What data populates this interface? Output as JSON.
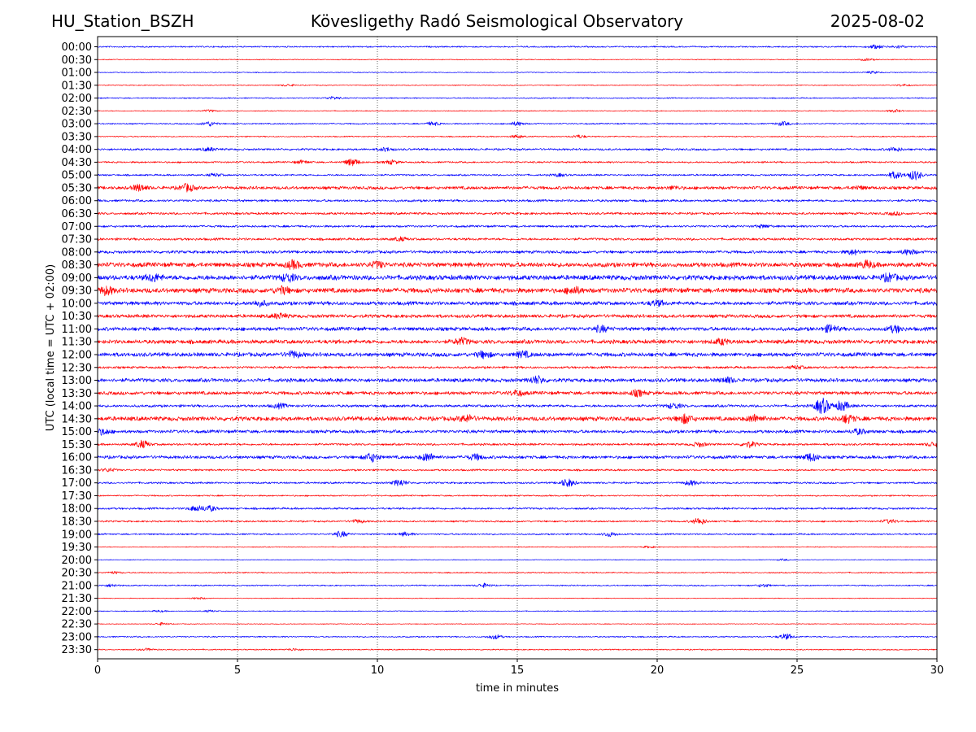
{
  "header": {
    "station": "HU_Station_BSZH",
    "observatory": "Kövesligethy Radó Seismological Observatory",
    "date": "2025-08-02"
  },
  "chart_data": {
    "type": "line",
    "title": "Kövesligethy Radó Seismological Observatory",
    "xlabel": "time in minutes",
    "ylabel": "UTC (local time = UTC + 02:00)",
    "xlim": [
      0,
      30
    ],
    "xticks": [
      0,
      5,
      10,
      15,
      20,
      25,
      30
    ],
    "grid_x": true,
    "colors": {
      "even": "#0000ff",
      "odd": "#ff0000"
    },
    "rows": [
      {
        "label": "00:00",
        "amp": 1,
        "bursts": [
          [
            27.8,
            2
          ],
          [
            28.6,
            1.5
          ]
        ]
      },
      {
        "label": "00:30",
        "amp": 0.6,
        "bursts": [
          [
            27.5,
            1.2
          ]
        ]
      },
      {
        "label": "01:00",
        "amp": 0.6,
        "bursts": [
          [
            27.7,
            1.3
          ]
        ]
      },
      {
        "label": "01:30",
        "amp": 0.6,
        "bursts": [
          [
            6.8,
            1.2
          ],
          [
            28.8,
            1.2
          ]
        ]
      },
      {
        "label": "02:00",
        "amp": 0.8,
        "bursts": [
          [
            8.4,
            1.6
          ]
        ]
      },
      {
        "label": "02:30",
        "amp": 0.6,
        "bursts": [
          [
            4,
            1.2
          ],
          [
            28.5,
            1.5
          ]
        ]
      },
      {
        "label": "03:00",
        "amp": 0.9,
        "bursts": [
          [
            4,
            2.6
          ],
          [
            12,
            2
          ],
          [
            15,
            2.2
          ],
          [
            24.5,
            2.2
          ]
        ]
      },
      {
        "label": "03:30",
        "amp": 0.8,
        "bursts": [
          [
            15,
            1.6
          ],
          [
            17.2,
            1.8
          ]
        ]
      },
      {
        "label": "04:00",
        "amp": 1.4,
        "bursts": [
          [
            4,
            1.8
          ],
          [
            10.3,
            2
          ],
          [
            28.5,
            2
          ]
        ]
      },
      {
        "label": "04:30",
        "amp": 1.2,
        "bursts": [
          [
            7.3,
            1.8
          ],
          [
            9.1,
            4
          ],
          [
            10.5,
            2.2
          ]
        ]
      },
      {
        "label": "05:00",
        "amp": 1.2,
        "bursts": [
          [
            4.2,
            1.5
          ],
          [
            16.5,
            1.5
          ],
          [
            28.5,
            4
          ],
          [
            29.2,
            5.5
          ]
        ]
      },
      {
        "label": "05:30",
        "amp": 2.2,
        "bursts": [
          [
            1.5,
            3.5
          ],
          [
            3.2,
            4
          ],
          [
            20.6,
            1.6
          ],
          [
            27.2,
            1.6
          ]
        ]
      },
      {
        "label": "06:00",
        "amp": 1.6,
        "bursts": []
      },
      {
        "label": "06:30",
        "amp": 1.6,
        "bursts": [
          [
            28.5,
            1.5
          ]
        ]
      },
      {
        "label": "07:00",
        "amp": 1.5,
        "bursts": [
          [
            23.8,
            1.6
          ]
        ]
      },
      {
        "label": "07:30",
        "amp": 1.7,
        "bursts": [
          [
            10.8,
            2
          ]
        ]
      },
      {
        "label": "08:00",
        "amp": 2,
        "bursts": [
          [
            27,
            2.5
          ],
          [
            29,
            2.8
          ]
        ]
      },
      {
        "label": "08:30",
        "amp": 3.2,
        "bursts": [
          [
            7,
            4
          ],
          [
            10,
            3
          ],
          [
            27.5,
            3.5
          ]
        ]
      },
      {
        "label": "09:00",
        "amp": 3.4,
        "bursts": [
          [
            2,
            3.6
          ],
          [
            6.8,
            4
          ],
          [
            28.3,
            3.8
          ]
        ]
      },
      {
        "label": "09:30",
        "amp": 3.4,
        "bursts": [
          [
            0.3,
            4
          ],
          [
            6.6,
            3.6
          ],
          [
            17,
            3.6
          ]
        ]
      },
      {
        "label": "10:00",
        "amp": 2.6,
        "bursts": [
          [
            5.8,
            3
          ],
          [
            20,
            2.8
          ]
        ]
      },
      {
        "label": "10:30",
        "amp": 2.4,
        "bursts": [
          [
            6.5,
            2.6
          ]
        ]
      },
      {
        "label": "11:00",
        "amp": 2.6,
        "bursts": [
          [
            18,
            3.2
          ],
          [
            26.2,
            4
          ],
          [
            28.5,
            3.5
          ]
        ]
      },
      {
        "label": "11:30",
        "amp": 2.8,
        "bursts": [
          [
            13,
            3.6
          ],
          [
            22.3,
            2.8
          ]
        ]
      },
      {
        "label": "12:00",
        "amp": 2.8,
        "bursts": [
          [
            7,
            3.2
          ],
          [
            13.8,
            3.4
          ],
          [
            15.2,
            3
          ]
        ]
      },
      {
        "label": "12:30",
        "amp": 1.6,
        "bursts": [
          [
            25,
            1.8
          ]
        ]
      },
      {
        "label": "13:00",
        "amp": 2.6,
        "bursts": [
          [
            15.7,
            4
          ],
          [
            22.5,
            2.8
          ]
        ]
      },
      {
        "label": "13:30",
        "amp": 2.4,
        "bursts": [
          [
            15,
            2.8
          ],
          [
            19.3,
            3.2
          ]
        ]
      },
      {
        "label": "14:00",
        "amp": 1.8,
        "bursts": [
          [
            6.5,
            2.4
          ],
          [
            20.6,
            3
          ],
          [
            25.9,
            9
          ],
          [
            26.6,
            5.5
          ]
        ]
      },
      {
        "label": "14:30",
        "amp": 3,
        "bursts": [
          [
            13.2,
            3.6
          ],
          [
            21,
            4.5
          ],
          [
            23.5,
            4
          ],
          [
            26.8,
            4
          ]
        ]
      },
      {
        "label": "15:00",
        "amp": 2.2,
        "bursts": [
          [
            0.2,
            3
          ],
          [
            27.2,
            2.8
          ]
        ]
      },
      {
        "label": "15:30",
        "amp": 1.5,
        "bursts": [
          [
            1.6,
            4.2
          ],
          [
            21.5,
            2.4
          ],
          [
            23.3,
            3.2
          ],
          [
            29.9,
            2.8
          ]
        ]
      },
      {
        "label": "16:00",
        "amp": 2.2,
        "bursts": [
          [
            9.8,
            4.6
          ],
          [
            11.8,
            4.2
          ],
          [
            13.5,
            3
          ],
          [
            25.5,
            4.2
          ]
        ]
      },
      {
        "label": "16:30",
        "amp": 1.3,
        "bursts": [
          [
            0.4,
            1.8
          ]
        ]
      },
      {
        "label": "17:00",
        "amp": 1.3,
        "bursts": [
          [
            10.8,
            3.6
          ],
          [
            16.8,
            4.6
          ],
          [
            21.2,
            2.6
          ]
        ]
      },
      {
        "label": "17:30",
        "amp": 1,
        "bursts": []
      },
      {
        "label": "18:00",
        "amp": 1.4,
        "bursts": [
          [
            3.5,
            2.8
          ],
          [
            4,
            3
          ]
        ]
      },
      {
        "label": "18:30",
        "amp": 1.2,
        "bursts": [
          [
            9.3,
            1.8
          ],
          [
            21.5,
            3.6
          ],
          [
            28.3,
            2
          ]
        ]
      },
      {
        "label": "19:00",
        "amp": 1.1,
        "bursts": [
          [
            8.7,
            3.2
          ],
          [
            11,
            2
          ],
          [
            18.3,
            2.4
          ]
        ]
      },
      {
        "label": "19:30",
        "amp": 0.6,
        "bursts": [
          [
            19.7,
            1
          ]
        ]
      },
      {
        "label": "20:00",
        "amp": 0.5,
        "bursts": [
          [
            24.5,
            0.9
          ]
        ]
      },
      {
        "label": "20:30",
        "amp": 0.8,
        "bursts": [
          [
            0.6,
            1.2
          ]
        ]
      },
      {
        "label": "21:00",
        "amp": 0.9,
        "bursts": [
          [
            0.5,
            1.5
          ],
          [
            13.8,
            2.2
          ],
          [
            23.8,
            1.6
          ]
        ]
      },
      {
        "label": "21:30",
        "amp": 0.5,
        "bursts": [
          [
            3.6,
            1.2
          ]
        ]
      },
      {
        "label": "22:00",
        "amp": 0.6,
        "bursts": [
          [
            2.2,
            1
          ],
          [
            4,
            1
          ]
        ]
      },
      {
        "label": "22:30",
        "amp": 0.5,
        "bursts": [
          [
            2.3,
            1.6
          ]
        ]
      },
      {
        "label": "23:00",
        "amp": 0.9,
        "bursts": [
          [
            14.2,
            2.4
          ],
          [
            24.6,
            3.2
          ]
        ]
      },
      {
        "label": "23:30",
        "amp": 0.8,
        "bursts": [
          [
            1.8,
            1.2
          ],
          [
            7,
            1.2
          ]
        ]
      }
    ]
  }
}
